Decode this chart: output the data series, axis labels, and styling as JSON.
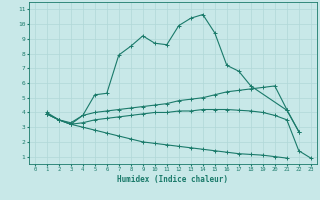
{
  "xlabel": "Humidex (Indice chaleur)",
  "background_color": "#c8e8e8",
  "grid_color": "#b0d8d8",
  "line_color": "#1a7a6a",
  "xlim": [
    -0.5,
    23.5
  ],
  "ylim": [
    0.5,
    11.5
  ],
  "xticks": [
    0,
    1,
    2,
    3,
    4,
    5,
    6,
    7,
    8,
    9,
    10,
    11,
    12,
    13,
    14,
    15,
    16,
    17,
    18,
    19,
    20,
    21,
    22,
    23
  ],
  "yticks": [
    1,
    2,
    3,
    4,
    5,
    6,
    7,
    8,
    9,
    10,
    11
  ],
  "lines": [
    {
      "x": [
        1,
        2,
        3,
        4,
        5,
        6,
        7,
        8,
        9,
        10,
        11,
        12,
        13,
        14,
        15,
        16,
        17,
        18,
        21,
        22
      ],
      "y": [
        4.0,
        3.5,
        3.2,
        3.8,
        5.2,
        5.3,
        7.9,
        8.5,
        9.2,
        8.7,
        8.6,
        9.9,
        10.4,
        10.65,
        9.4,
        7.2,
        6.8,
        5.8,
        4.15,
        2.7
      ]
    },
    {
      "x": [
        1,
        2,
        3,
        4,
        5,
        6,
        7,
        8,
        9,
        10,
        11,
        12,
        13,
        14,
        15,
        16,
        17,
        18,
        19,
        20,
        21,
        22
      ],
      "y": [
        3.9,
        3.5,
        3.3,
        3.8,
        4.0,
        4.1,
        4.2,
        4.3,
        4.4,
        4.5,
        4.6,
        4.8,
        4.9,
        5.0,
        5.2,
        5.4,
        5.5,
        5.6,
        5.7,
        5.8,
        4.2,
        2.7
      ]
    },
    {
      "x": [
        1,
        2,
        3,
        4,
        5,
        6,
        7,
        8,
        9,
        10,
        11,
        12,
        13,
        14,
        15,
        16,
        17,
        18,
        19,
        20,
        21,
        22,
        23
      ],
      "y": [
        3.9,
        3.5,
        3.2,
        3.3,
        3.5,
        3.6,
        3.7,
        3.8,
        3.9,
        4.0,
        4.0,
        4.1,
        4.1,
        4.2,
        4.2,
        4.2,
        4.15,
        4.1,
        4.0,
        3.8,
        3.5,
        1.4,
        0.9
      ]
    },
    {
      "x": [
        1,
        2,
        3,
        4,
        5,
        6,
        7,
        8,
        9,
        10,
        11,
        12,
        13,
        14,
        15,
        16,
        17,
        18,
        19,
        20,
        21,
        22,
        23
      ],
      "y": [
        3.9,
        3.5,
        3.2,
        3.0,
        2.8,
        2.6,
        2.4,
        2.2,
        2.0,
        1.9,
        1.8,
        1.7,
        1.6,
        1.5,
        1.4,
        1.3,
        1.2,
        1.15,
        1.1,
        1.0,
        0.9,
        null,
        null
      ]
    }
  ]
}
